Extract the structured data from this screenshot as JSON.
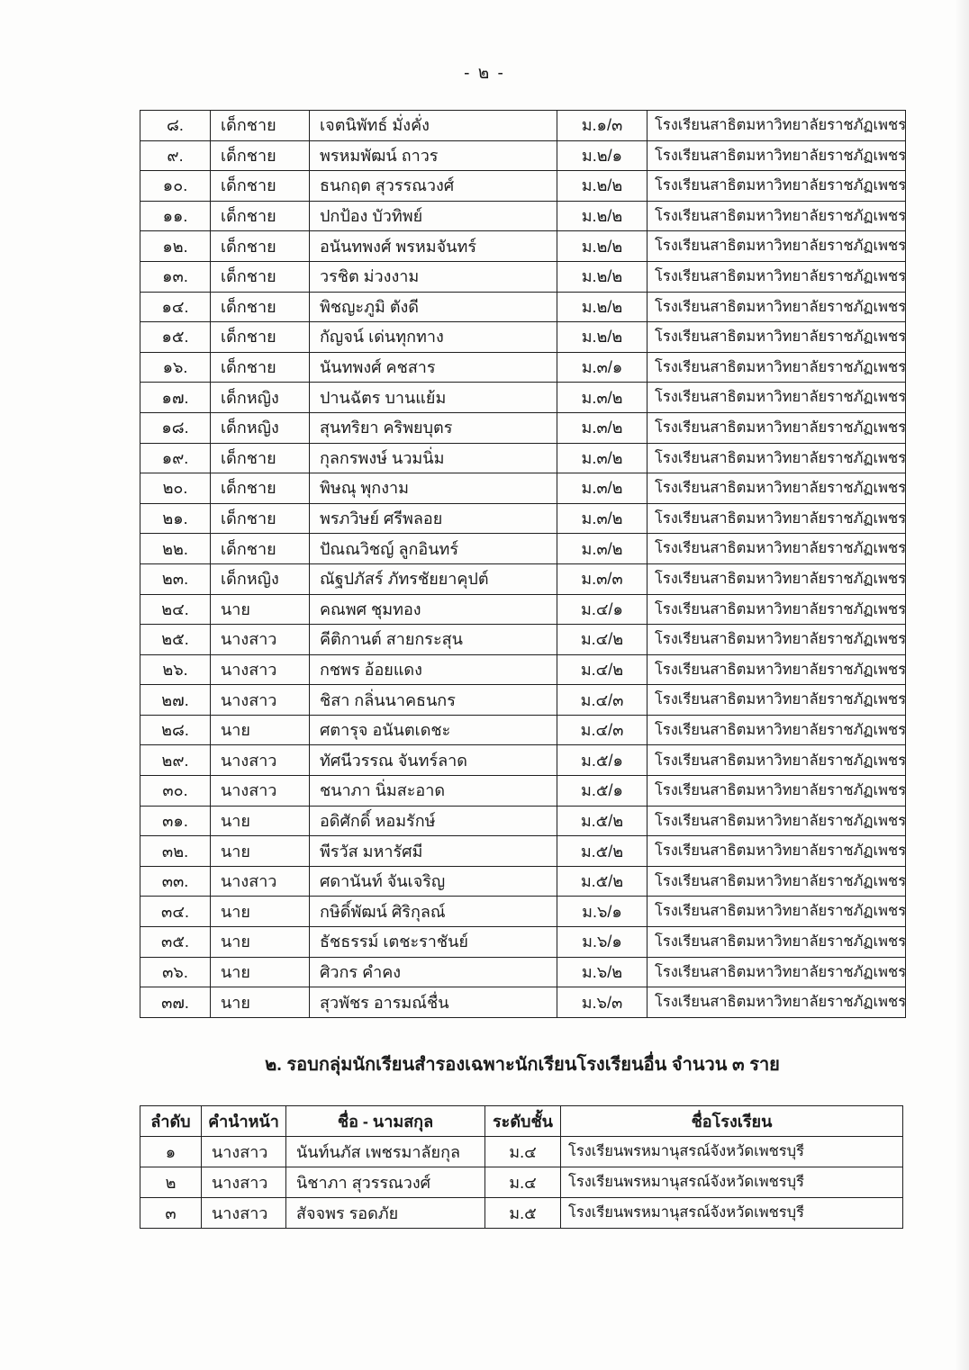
{
  "page": {
    "number_label": "- ๒ -"
  },
  "table1": {
    "rows": [
      {
        "no": "๘.",
        "title": "เด็กชาย",
        "name": "เจตนิพัทธ์ มั่งคั่ง",
        "class": "ม.๑/๓",
        "school": "โรงเรียนสาธิตมหาวิทยาลัยราชภัฏเพชรบุรี"
      },
      {
        "no": "๙.",
        "title": "เด็กชาย",
        "name": "พรหมพัฒน์ ถาวร",
        "class": "ม.๒/๑",
        "school": "โรงเรียนสาธิตมหาวิทยาลัยราชภัฏเพชรบุรี"
      },
      {
        "no": "๑๐.",
        "title": "เด็กชาย",
        "name": "ธนกฤต สุวรรณวงศ์",
        "class": "ม.๒/๒",
        "school": "โรงเรียนสาธิตมหาวิทยาลัยราชภัฏเพชรบุรี"
      },
      {
        "no": "๑๑.",
        "title": "เด็กชาย",
        "name": "ปกป้อง บัวทิพย์",
        "class": "ม.๒/๒",
        "school": "โรงเรียนสาธิตมหาวิทยาลัยราชภัฏเพชรบุรี"
      },
      {
        "no": "๑๒.",
        "title": "เด็กชาย",
        "name": "อนันทพงศ์ พรหมจันทร์",
        "class": "ม.๒/๒",
        "school": "โรงเรียนสาธิตมหาวิทยาลัยราชภัฏเพชรบุรี"
      },
      {
        "no": "๑๓.",
        "title": "เด็กชาย",
        "name": "วรชิต  ม่วงงาม",
        "class": "ม.๒/๒",
        "school": "โรงเรียนสาธิตมหาวิทยาลัยราชภัฏเพชรบุรี"
      },
      {
        "no": "๑๔.",
        "title": "เด็กชาย",
        "name": "พิชญะภูมิ ตังดี",
        "class": "ม.๒/๒",
        "school": "โรงเรียนสาธิตมหาวิทยาลัยราชภัฏเพชรบุรี"
      },
      {
        "no": "๑๕.",
        "title": "เด็กชาย",
        "name": "กัญจน์ เด่นทุกทาง",
        "class": "ม.๒/๒",
        "school": "โรงเรียนสาธิตมหาวิทยาลัยราชภัฏเพชรบุรี"
      },
      {
        "no": "๑๖.",
        "title": "เด็กชาย",
        "name": "นันทพงศ์  คชสาร",
        "class": "ม.๓/๑",
        "school": "โรงเรียนสาธิตมหาวิทยาลัยราชภัฏเพชรบุรี"
      },
      {
        "no": "๑๗.",
        "title": "เด็กหญิง",
        "name": "ปานฉัตร  บานแย้ม",
        "class": "ม.๓/๒",
        "school": "โรงเรียนสาธิตมหาวิทยาลัยราชภัฏเพชรบุรี"
      },
      {
        "no": "๑๘.",
        "title": "เด็กหญิง",
        "name": "สุนทริยา คริพยบุตร",
        "class": "ม.๓/๒",
        "school": "โรงเรียนสาธิตมหาวิทยาลัยราชภัฏเพชรบุรี"
      },
      {
        "no": "๑๙.",
        "title": "เด็กชาย",
        "name": "กุลกรพงษ์ นวมนิ่ม",
        "class": "ม.๓/๒",
        "school": "โรงเรียนสาธิตมหาวิทยาลัยราชภัฏเพชรบุรี"
      },
      {
        "no": "๒๐.",
        "title": "เด็กชาย",
        "name": "พิษณุ พุกงาม",
        "class": "ม.๓/๒",
        "school": "โรงเรียนสาธิตมหาวิทยาลัยราชภัฏเพชรบุรี"
      },
      {
        "no": "๒๑.",
        "title": "เด็กชาย",
        "name": "พรภวิษย์ ศรีพลอย",
        "class": "ม.๓/๒",
        "school": "โรงเรียนสาธิตมหาวิทยาลัยราชภัฏเพชรบุรี"
      },
      {
        "no": "๒๒.",
        "title": "เด็กชาย",
        "name": "ปัณณวิชญ์ ลูกอินทร์",
        "class": "ม.๓/๒",
        "school": "โรงเรียนสาธิตมหาวิทยาลัยราชภัฏเพชรบุรี"
      },
      {
        "no": "๒๓.",
        "title": "เด็กหญิง",
        "name": "ณัฐปภัสร์  ภัทรชัยยาคุปต์",
        "class": "ม.๓/๓",
        "school": "โรงเรียนสาธิตมหาวิทยาลัยราชภัฏเพชรบุรี"
      },
      {
        "no": "๒๔.",
        "title": "นาย",
        "name": "คณพศ ชุมทอง",
        "class": "ม.๔/๑",
        "school": "โรงเรียนสาธิตมหาวิทยาลัยราชภัฏเพชรบุรี"
      },
      {
        "no": "๒๕.",
        "title": "นางสาว",
        "name": "คีติกานต์ สายกระสุน",
        "class": "ม.๔/๒",
        "school": "โรงเรียนสาธิตมหาวิทยาลัยราชภัฏเพชรบุรี"
      },
      {
        "no": "๒๖.",
        "title": "นางสาว",
        "name": "กชพร อ้อยแดง",
        "class": "ม.๔/๒",
        "school": "โรงเรียนสาธิตมหาวิทยาลัยราชภัฏเพชรบุรี"
      },
      {
        "no": "๒๗.",
        "title": "นางสาว",
        "name": "ชิสา กลิ่นนาคธนกร",
        "class": "ม.๔/๓",
        "school": "โรงเรียนสาธิตมหาวิทยาลัยราชภัฏเพชรบุรี"
      },
      {
        "no": "๒๘.",
        "title": "นาย",
        "name": "ศตารุจ อนันตเดชะ",
        "class": "ม.๔/๓",
        "school": "โรงเรียนสาธิตมหาวิทยาลัยราชภัฏเพชรบุรี"
      },
      {
        "no": "๒๙.",
        "title": "นางสาว",
        "name": "ทัศนีวรรณ จันทร์ลาด",
        "class": "ม.๕/๑",
        "school": "โรงเรียนสาธิตมหาวิทยาลัยราชภัฏเพชรบุรี"
      },
      {
        "no": "๓๐.",
        "title": "นางสาว",
        "name": "ชนาภา นิ่มสะอาด",
        "class": "ม.๕/๑",
        "school": "โรงเรียนสาธิตมหาวิทยาลัยราชภัฏเพชรบุรี"
      },
      {
        "no": "๓๑.",
        "title": "นาย",
        "name": "อดิศักดิ์ หอมรักษ์",
        "class": "ม.๕/๒",
        "school": "โรงเรียนสาธิตมหาวิทยาลัยราชภัฏเพชรบุรี"
      },
      {
        "no": "๓๒.",
        "title": "นาย",
        "name": "พีรวัส มหารัศมี",
        "class": "ม.๕/๒",
        "school": "โรงเรียนสาธิตมหาวิทยาลัยราชภัฏเพชรบุรี"
      },
      {
        "no": "๓๓.",
        "title": "นางสาว",
        "name": "ศดานันท์ จันเจริญ",
        "class": "ม.๕/๒",
        "school": "โรงเรียนสาธิตมหาวิทยาลัยราชภัฏเพชรบุรี"
      },
      {
        "no": "๓๔.",
        "title": "นาย",
        "name": "กษิดิ์พัฒน์ ศิริกุลณ์",
        "class": "ม.๖/๑",
        "school": "โรงเรียนสาธิตมหาวิทยาลัยราชภัฏเพชรบุรี"
      },
      {
        "no": "๓๕.",
        "title": "นาย",
        "name": "ธัชธรรม์ เตชะราชันย์",
        "class": "ม.๖/๑",
        "school": "โรงเรียนสาธิตมหาวิทยาลัยราชภัฏเพชรบุรี"
      },
      {
        "no": "๓๖.",
        "title": "นาย",
        "name": "ศิวกร คำคง",
        "class": "ม.๖/๒",
        "school": "โรงเรียนสาธิตมหาวิทยาลัยราชภัฏเพชรบุรี"
      },
      {
        "no": "๓๗.",
        "title": "นาย",
        "name": "สุวพัชร อารมณ์ชื่น",
        "class": "ม.๖/๓",
        "school": "โรงเรียนสาธิตมหาวิทยาลัยราชภัฏเพชรบุรี"
      }
    ]
  },
  "section2": {
    "heading": "๒. รอบกลุ่มนักเรียนสำรองเฉพาะนักเรียนโรงเรียนอื่น จำนวน ๓ ราย"
  },
  "table2": {
    "headers": {
      "no": "ลำดับ",
      "title": "คำนำหน้า",
      "name": "ชื่อ - นามสกุล",
      "class": "ระดับชั้น",
      "school": "ชื่อโรงเรียน"
    },
    "rows": [
      {
        "no": "๑",
        "title": "นางสาว",
        "name": "นันท์นภัส เพชรมาลัยกุล",
        "class": "ม.๔",
        "school": "โรงเรียนพรหมานุสรณ์จังหวัดเพชรบุรี"
      },
      {
        "no": "๒",
        "title": "นางสาว",
        "name": "นิชาภา สุวรรณวงศ์",
        "class": "ม.๔",
        "school": "โรงเรียนพรหมานุสรณ์จังหวัดเพชรบุรี"
      },
      {
        "no": "๓",
        "title": "นางสาว",
        "name": "สัจจพร รอดภัย",
        "class": "ม.๕",
        "school": "โรงเรียนพรหมานุสรณ์จังหวัดเพชรบุรี"
      }
    ]
  }
}
